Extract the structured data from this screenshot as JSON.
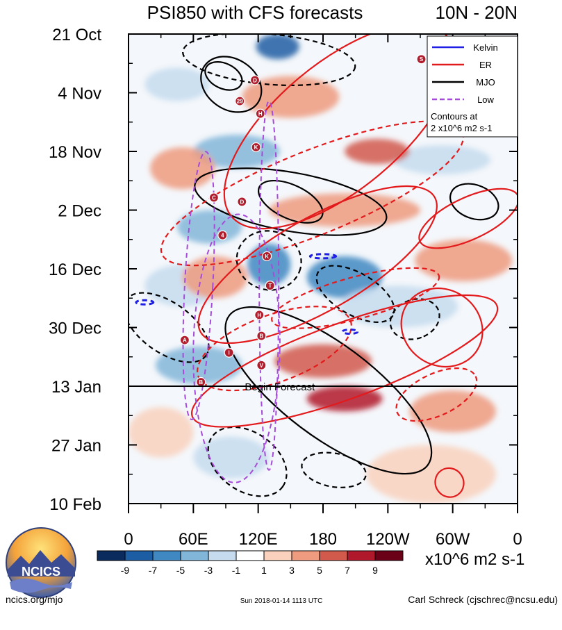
{
  "chart_data": {
    "type": "heatmap",
    "title": "PSI850 with CFS forecasts",
    "region": "10N - 20N",
    "x_ticks": [
      {
        "label": "0",
        "lon": 0
      },
      {
        "label": "60E",
        "lon": 60
      },
      {
        "label": "120E",
        "lon": 120
      },
      {
        "label": "180",
        "lon": 180
      },
      {
        "label": "120W",
        "lon": 240
      },
      {
        "label": "60W",
        "lon": 300
      },
      {
        "label": "0",
        "lon": 360
      }
    ],
    "xlim": [
      0,
      360
    ],
    "y_ticks": [
      {
        "label": "21 Oct",
        "day": 0
      },
      {
        "label": "4 Nov",
        "day": 14
      },
      {
        "label": "18 Nov",
        "day": 28
      },
      {
        "label": "2 Dec",
        "day": 42
      },
      {
        "label": "16 Dec",
        "day": 56
      },
      {
        "label": "30 Dec",
        "day": 70
      },
      {
        "label": "13 Jan",
        "day": 84
      },
      {
        "label": "27 Jan",
        "day": 98
      },
      {
        "label": "10 Feb",
        "day": 112
      }
    ],
    "ylim": [
      0,
      112
    ],
    "forecast_start_day": 84,
    "forecast_label": "Begin Forecast",
    "legend": {
      "position": "top-right",
      "entries": [
        {
          "name": "Kelvin",
          "color": "#1f1fe6",
          "dash": false
        },
        {
          "name": "ER",
          "color": "#e31a1c",
          "dash": false
        },
        {
          "name": "MJO",
          "color": "#000000",
          "dash": false
        },
        {
          "name": "Low",
          "color": "#a64bd9",
          "dash": true
        }
      ],
      "note_lines": [
        "Contours at",
        "2 x10^6 m2 s-1"
      ]
    },
    "colorbar": {
      "labels": [
        "-9",
        "-7",
        "-5",
        "-3",
        "-1",
        "1",
        "3",
        "5",
        "7",
        "9"
      ],
      "colors": [
        "#0b2a5e",
        "#1d5da3",
        "#3f88c2",
        "#82b6d9",
        "#c6dcee",
        "#ffffff",
        "#f9d1bd",
        "#ee9b7f",
        "#d15a4d",
        "#b0192b",
        "#6b0019"
      ],
      "units": "x10^6 m2 s-1"
    },
    "storms": [
      {
        "label": "D",
        "lon": 117,
        "day": 11
      },
      {
        "label": "29",
        "lon": 103,
        "day": 16
      },
      {
        "label": "H",
        "lon": 122,
        "day": 19
      },
      {
        "label": "K",
        "lon": 118,
        "day": 27
      },
      {
        "label": "C",
        "lon": 79,
        "day": 39
      },
      {
        "label": "D",
        "lon": 105,
        "day": 40
      },
      {
        "label": "4",
        "lon": 87,
        "day": 48
      },
      {
        "label": "K",
        "lon": 128,
        "day": 53
      },
      {
        "label": "T",
        "lon": 131,
        "day": 60
      },
      {
        "label": "H",
        "lon": 121,
        "day": 67
      },
      {
        "label": "A",
        "lon": 52,
        "day": 73
      },
      {
        "label": "B",
        "lon": 123,
        "day": 72
      },
      {
        "label": "I",
        "lon": 93,
        "day": 76
      },
      {
        "label": "V",
        "lon": 123,
        "day": 79
      },
      {
        "label": "B",
        "lon": 67,
        "day": 83
      },
      {
        "label": "S",
        "lon": 271,
        "day": 6
      }
    ],
    "features": [
      {
        "kind": "MJO",
        "style": "solid",
        "lon": 95,
        "day": 12,
        "lon_span": 60,
        "day_span": 12,
        "rot": 35
      },
      {
        "kind": "MJO",
        "style": "solid",
        "lon": 88,
        "day": 10,
        "lon_span": 36,
        "day_span": 6,
        "rot": 25
      },
      {
        "kind": "MJO",
        "style": "solid",
        "lon": 150,
        "day": 40,
        "lon_span": 180,
        "day_span": 14,
        "rot": 10
      },
      {
        "kind": "MJO",
        "style": "solid",
        "lon": 150,
        "day": 40,
        "lon_span": 64,
        "day_span": 8,
        "rot": 25
      },
      {
        "kind": "MJO",
        "style": "solid",
        "lon": 185,
        "day": 85,
        "lon_span": 230,
        "day_span": 22,
        "rot": 37
      },
      {
        "kind": "MJO",
        "style": "solid",
        "lon": 320,
        "day": 40,
        "lon_span": 46,
        "day_span": 8,
        "rot": 20
      },
      {
        "kind": "MJO",
        "style": "dashed",
        "lon": 130,
        "day": 6,
        "lon_span": 160,
        "day_span": 12,
        "rot": 5
      },
      {
        "kind": "MJO",
        "style": "dashed",
        "lon": 130,
        "day": 54,
        "lon_span": 60,
        "day_span": 14,
        "rot": 15
      },
      {
        "kind": "MJO",
        "style": "dashed",
        "lon": 210,
        "day": 62,
        "lon_span": 80,
        "day_span": 10,
        "rot": 30
      },
      {
        "kind": "MJO",
        "style": "dashed",
        "lon": 265,
        "day": 68,
        "lon_span": 36,
        "day_span": 12,
        "rot": 70
      },
      {
        "kind": "MJO",
        "style": "dashed",
        "lon": 35,
        "day": 70,
        "lon_span": 90,
        "day_span": 12,
        "rot": 35
      },
      {
        "kind": "MJO",
        "style": "dashed",
        "lon": 110,
        "day": 102,
        "lon_span": 80,
        "day_span": 14,
        "rot": 35
      },
      {
        "kind": "MJO",
        "style": "dashed",
        "lon": 190,
        "day": 104,
        "lon_span": 60,
        "day_span": 8,
        "rot": 10
      },
      {
        "kind": "ER",
        "style": "solid",
        "lon": 195,
        "day": 22,
        "lon_span": 260,
        "day_span": 30,
        "rot": -40
      },
      {
        "kind": "ER",
        "style": "solid",
        "lon": 175,
        "day": 55,
        "lon_span": 250,
        "day_span": 22,
        "rot": -30
      },
      {
        "kind": "ER",
        "style": "solid",
        "lon": 200,
        "day": 78,
        "lon_span": 300,
        "day_span": 18,
        "rot": -20
      },
      {
        "kind": "ER",
        "style": "solid",
        "lon": 290,
        "day": 70,
        "lon_span": 70,
        "day_span": 20,
        "rot": -55
      },
      {
        "kind": "ER",
        "style": "solid",
        "lon": 315,
        "day": 44,
        "lon_span": 100,
        "day_span": 10,
        "rot": -25
      },
      {
        "kind": "ER",
        "style": "solid",
        "lon": 297,
        "day": 107,
        "lon_span": 26,
        "day_span": 7,
        "rot": -35
      },
      {
        "kind": "ER",
        "style": "dashed",
        "lon": 170,
        "day": 38,
        "lon_span": 300,
        "day_span": 20,
        "rot": -22
      },
      {
        "kind": "ER",
        "style": "dashed",
        "lon": 210,
        "day": 63,
        "lon_span": 160,
        "day_span": 10,
        "rot": -15
      },
      {
        "kind": "ER",
        "style": "dashed",
        "lon": 135,
        "day": 75,
        "lon_span": 150,
        "day_span": 16,
        "rot": -20
      },
      {
        "kind": "ER",
        "style": "dashed",
        "lon": 285,
        "day": 86,
        "lon_span": 80,
        "day_span": 10,
        "rot": -25
      },
      {
        "kind": "Low",
        "style": "dashed",
        "lon": 65,
        "day": 60,
        "lon_span": 26,
        "day_span": 64,
        "rot": 3
      },
      {
        "kind": "Low",
        "style": "dashed",
        "lon": 130,
        "day": 60,
        "lon_span": 18,
        "day_span": 88,
        "rot": 0
      },
      {
        "kind": "Low",
        "style": "dashed",
        "lon": 100,
        "day": 75,
        "lon_span": 80,
        "day_span": 64,
        "rot": 1
      },
      {
        "kind": "Kelvin",
        "style": "dashed",
        "lon": 15,
        "day": 64,
        "lon_span": 16,
        "day_span": 1,
        "rot": 0
      },
      {
        "kind": "Kelvin",
        "style": "dashed",
        "lon": 180,
        "day": 53,
        "lon_span": 24,
        "day_span": 1,
        "rot": 0
      },
      {
        "kind": "Kelvin",
        "style": "dashed",
        "lon": 205,
        "day": 71,
        "lon_span": 14,
        "day_span": 1,
        "rot": 0
      }
    ],
    "anomalies": [
      {
        "sign": "neg",
        "value": -7,
        "lon": 130,
        "day": 55,
        "lon_span": 40,
        "day_span": 10
      },
      {
        "sign": "neg",
        "value": -7,
        "lon": 200,
        "day": 58,
        "lon_span": 70,
        "day_span": 10
      },
      {
        "sign": "neg",
        "value": -5,
        "lon": 75,
        "day": 46,
        "lon_span": 60,
        "day_span": 8
      },
      {
        "sign": "neg",
        "value": -9,
        "lon": 138,
        "day": 3,
        "lon_span": 40,
        "day_span": 6
      },
      {
        "sign": "neg",
        "value": -5,
        "lon": 65,
        "day": 79,
        "lon_span": 80,
        "day_span": 9
      },
      {
        "sign": "neg",
        "value": -5,
        "lon": 100,
        "day": 28,
        "lon_span": 80,
        "day_span": 8
      },
      {
        "sign": "neg",
        "value": -3,
        "lon": 95,
        "day": 101,
        "lon_span": 70,
        "day_span": 10
      },
      {
        "sign": "neg",
        "value": -3,
        "lon": 250,
        "day": 65,
        "lon_span": 110,
        "day_span": 10
      },
      {
        "sign": "neg",
        "value": -3,
        "lon": 45,
        "day": 12,
        "lon_span": 60,
        "day_span": 8
      },
      {
        "sign": "neg",
        "value": -3,
        "lon": 290,
        "day": 30,
        "lon_span": 90,
        "day_span": 7
      },
      {
        "sign": "neg",
        "value": -3,
        "lon": 50,
        "day": 60,
        "lon_span": 70,
        "day_span": 10
      },
      {
        "sign": "pos",
        "value": 7,
        "lon": 200,
        "day": 87,
        "lon_span": 70,
        "day_span": 6
      },
      {
        "sign": "pos",
        "value": 5,
        "lon": 180,
        "day": 78,
        "lon_span": 90,
        "day_span": 8
      },
      {
        "sign": "pos",
        "value": 5,
        "lon": 230,
        "day": 28,
        "lon_span": 60,
        "day_span": 6
      },
      {
        "sign": "pos",
        "value": 3,
        "lon": 150,
        "day": 15,
        "lon_span": 90,
        "day_span": 10
      },
      {
        "sign": "pos",
        "value": 3,
        "lon": 200,
        "day": 42,
        "lon_span": 140,
        "day_span": 8
      },
      {
        "sign": "pos",
        "value": 3,
        "lon": 80,
        "day": 58,
        "lon_span": 60,
        "day_span": 10
      },
      {
        "sign": "pos",
        "value": 3,
        "lon": 300,
        "day": 90,
        "lon_span": 80,
        "day_span": 10
      },
      {
        "sign": "pos",
        "value": 3,
        "lon": 310,
        "day": 54,
        "lon_span": 90,
        "day_span": 10
      },
      {
        "sign": "pos",
        "value": 3,
        "lon": 50,
        "day": 32,
        "lon_span": 60,
        "day_span": 10
      },
      {
        "sign": "pos",
        "value": 1,
        "lon": 280,
        "day": 105,
        "lon_span": 120,
        "day_span": 14
      },
      {
        "sign": "pos",
        "value": 1,
        "lon": 30,
        "day": 95,
        "lon_span": 60,
        "day_span": 12
      }
    ]
  },
  "logo": {
    "text": "NCICS"
  },
  "footer": {
    "url": "ncics.org/mjo",
    "timestamp": "Sun 2018-01-14 1113 UTC",
    "author": "Carl Schreck (cjschrec@ncsu.edu)"
  }
}
